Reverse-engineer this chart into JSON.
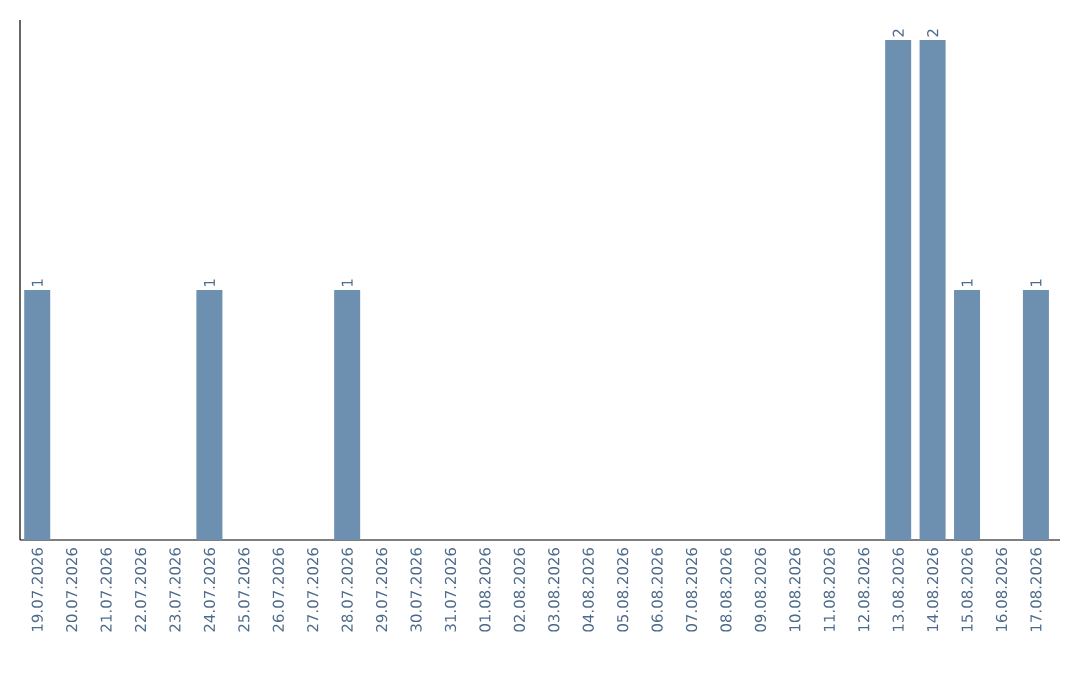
{
  "chart_data": {
    "type": "bar",
    "categories": [
      "19.07.2026",
      "20.07.2026",
      "21.07.2026",
      "22.07.2026",
      "23.07.2026",
      "24.07.2026",
      "25.07.2026",
      "26.07.2026",
      "27.07.2026",
      "28.07.2026",
      "29.07.2026",
      "30.07.2026",
      "31.07.2026",
      "01.08.2026",
      "02.08.2026",
      "03.08.2026",
      "04.08.2026",
      "05.08.2026",
      "06.08.2026",
      "07.08.2026",
      "08.08.2026",
      "09.08.2026",
      "10.08.2026",
      "11.08.2026",
      "12.08.2026",
      "13.08.2026",
      "14.08.2026",
      "15.08.2026",
      "16.08.2026",
      "17.08.2026"
    ],
    "values": [
      1,
      0,
      0,
      0,
      0,
      1,
      0,
      0,
      0,
      1,
      0,
      0,
      0,
      0,
      0,
      0,
      0,
      0,
      0,
      0,
      0,
      0,
      0,
      0,
      0,
      2,
      2,
      1,
      0,
      1
    ],
    "value_labels": [
      "1",
      null,
      null,
      null,
      null,
      "1",
      null,
      null,
      null,
      "1",
      null,
      null,
      null,
      null,
      null,
      null,
      null,
      null,
      null,
      null,
      null,
      null,
      null,
      null,
      null,
      "2",
      "2",
      "1",
      null,
      "1"
    ],
    "color": "#6d8fb0"
  }
}
